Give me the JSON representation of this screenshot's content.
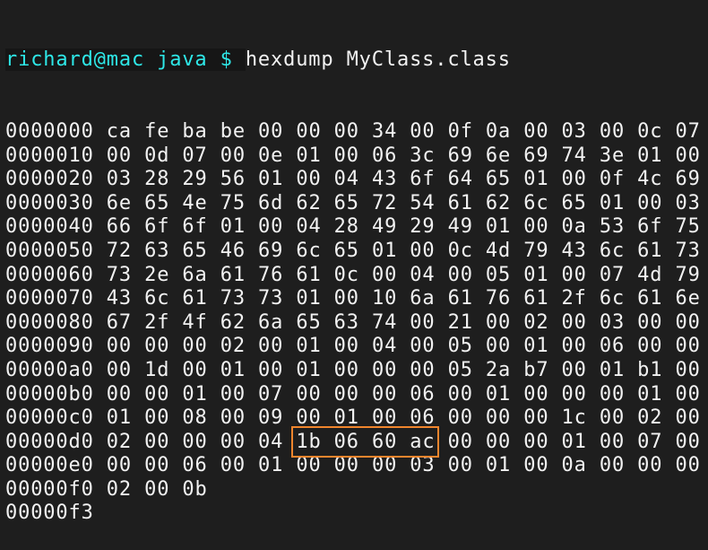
{
  "prompt": {
    "text": "richard@mac java $",
    "color": "#2ee8e8"
  },
  "command": "hexdump MyClass.class",
  "highlight_color": "#f0852d",
  "highlight": {
    "row_offset": "00000d0",
    "byte_start": 5,
    "byte_end": 8
  },
  "rows": [
    {
      "offset": "0000000",
      "bytes": [
        "ca",
        "fe",
        "ba",
        "be",
        "00",
        "00",
        "00",
        "34",
        "00",
        "0f",
        "0a",
        "00",
        "03",
        "00",
        "0c",
        "07"
      ]
    },
    {
      "offset": "0000010",
      "bytes": [
        "00",
        "0d",
        "07",
        "00",
        "0e",
        "01",
        "00",
        "06",
        "3c",
        "69",
        "6e",
        "69",
        "74",
        "3e",
        "01",
        "00"
      ]
    },
    {
      "offset": "0000020",
      "bytes": [
        "03",
        "28",
        "29",
        "56",
        "01",
        "00",
        "04",
        "43",
        "6f",
        "64",
        "65",
        "01",
        "00",
        "0f",
        "4c",
        "69"
      ]
    },
    {
      "offset": "0000030",
      "bytes": [
        "6e",
        "65",
        "4e",
        "75",
        "6d",
        "62",
        "65",
        "72",
        "54",
        "61",
        "62",
        "6c",
        "65",
        "01",
        "00",
        "03"
      ]
    },
    {
      "offset": "0000040",
      "bytes": [
        "66",
        "6f",
        "6f",
        "01",
        "00",
        "04",
        "28",
        "49",
        "29",
        "49",
        "01",
        "00",
        "0a",
        "53",
        "6f",
        "75"
      ]
    },
    {
      "offset": "0000050",
      "bytes": [
        "72",
        "63",
        "65",
        "46",
        "69",
        "6c",
        "65",
        "01",
        "00",
        "0c",
        "4d",
        "79",
        "43",
        "6c",
        "61",
        "73"
      ]
    },
    {
      "offset": "0000060",
      "bytes": [
        "73",
        "2e",
        "6a",
        "61",
        "76",
        "61",
        "0c",
        "00",
        "04",
        "00",
        "05",
        "01",
        "00",
        "07",
        "4d",
        "79"
      ]
    },
    {
      "offset": "0000070",
      "bytes": [
        "43",
        "6c",
        "61",
        "73",
        "73",
        "01",
        "00",
        "10",
        "6a",
        "61",
        "76",
        "61",
        "2f",
        "6c",
        "61",
        "6e"
      ]
    },
    {
      "offset": "0000080",
      "bytes": [
        "67",
        "2f",
        "4f",
        "62",
        "6a",
        "65",
        "63",
        "74",
        "00",
        "21",
        "00",
        "02",
        "00",
        "03",
        "00",
        "00"
      ]
    },
    {
      "offset": "0000090",
      "bytes": [
        "00",
        "00",
        "00",
        "02",
        "00",
        "01",
        "00",
        "04",
        "00",
        "05",
        "00",
        "01",
        "00",
        "06",
        "00",
        "00"
      ]
    },
    {
      "offset": "00000a0",
      "bytes": [
        "00",
        "1d",
        "00",
        "01",
        "00",
        "01",
        "00",
        "00",
        "00",
        "05",
        "2a",
        "b7",
        "00",
        "01",
        "b1",
        "00"
      ]
    },
    {
      "offset": "00000b0",
      "bytes": [
        "00",
        "00",
        "01",
        "00",
        "07",
        "00",
        "00",
        "00",
        "06",
        "00",
        "01",
        "00",
        "00",
        "00",
        "01",
        "00"
      ]
    },
    {
      "offset": "00000c0",
      "bytes": [
        "01",
        "00",
        "08",
        "00",
        "09",
        "00",
        "01",
        "00",
        "06",
        "00",
        "00",
        "00",
        "1c",
        "00",
        "02",
        "00"
      ]
    },
    {
      "offset": "00000d0",
      "bytes": [
        "02",
        "00",
        "00",
        "00",
        "04",
        "1b",
        "06",
        "60",
        "ac",
        "00",
        "00",
        "00",
        "01",
        "00",
        "07",
        "00"
      ]
    },
    {
      "offset": "00000e0",
      "bytes": [
        "00",
        "00",
        "06",
        "00",
        "01",
        "00",
        "00",
        "00",
        "03",
        "00",
        "01",
        "00",
        "0a",
        "00",
        "00",
        "00"
      ]
    },
    {
      "offset": "00000f0",
      "bytes": [
        "02",
        "00",
        "0b"
      ]
    },
    {
      "offset": "00000f3",
      "bytes": []
    }
  ]
}
